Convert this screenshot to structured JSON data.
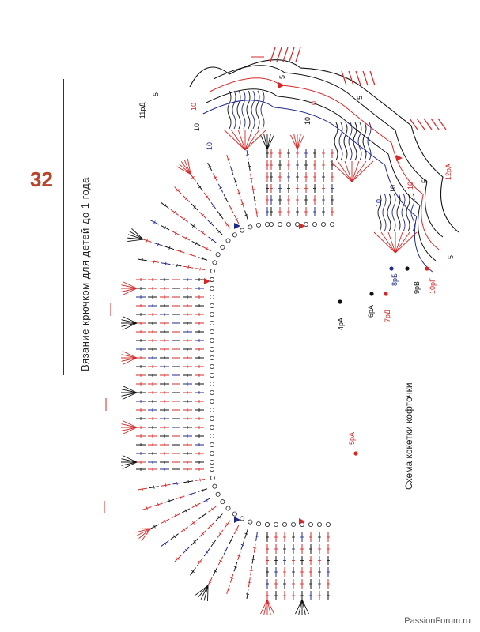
{
  "page": {
    "number": "32",
    "title": "Вязание крючком для детей до 1 года",
    "watermark": "PassionForum.ru"
  },
  "diagram": {
    "caption": "Схема кокетки кофточки",
    "row_labels": [
      {
        "text": "4рА",
        "color": "#111111"
      },
      {
        "text": "6рА",
        "color": "#111111"
      },
      {
        "text": "7рД",
        "color": "#d62828"
      },
      {
        "text": "8рБ",
        "color": "#1f2a8a"
      },
      {
        "text": "9рВ",
        "color": "#111111"
      },
      {
        "text": "10рГ",
        "color": "#d62828"
      },
      {
        "text": "11рД",
        "color": "#111111"
      },
      {
        "text": "12рА",
        "color": "#d62828"
      },
      {
        "text": "5рА",
        "color": "#d62828"
      }
    ],
    "counts": [
      "5",
      "5",
      "5",
      "5",
      "5",
      "10",
      "10",
      "10",
      "10",
      "10",
      "10",
      "10",
      "10"
    ],
    "colors": {
      "red": "#d62828",
      "blue": "#1f2a8a",
      "black": "#111111"
    }
  }
}
